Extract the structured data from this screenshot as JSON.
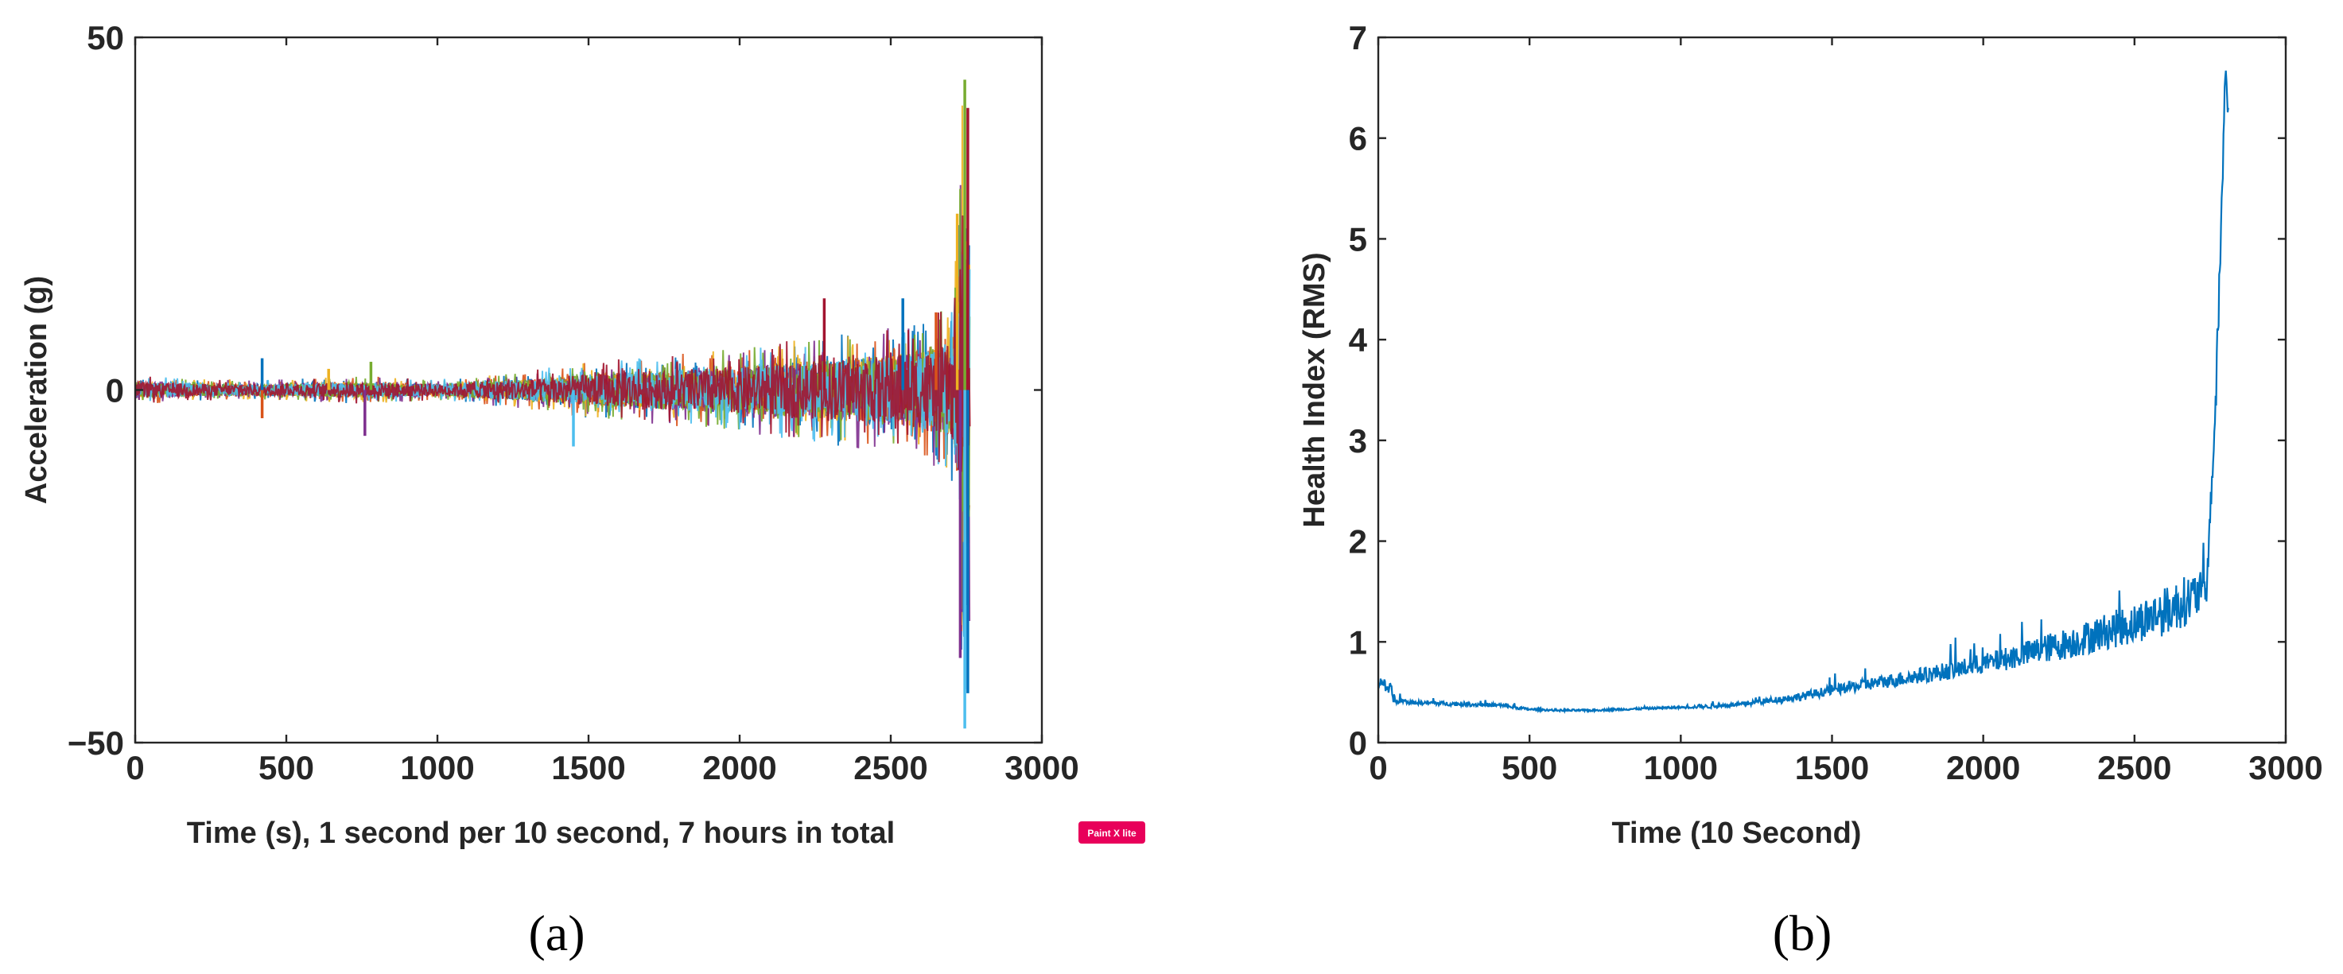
{
  "chart_data": [
    {
      "type": "line",
      "panel": "(a)",
      "title": "",
      "xlabel": "Time (s), 1 second per 10 second, 7 hours in total",
      "ylabel": "Acceleration (g)",
      "xlim": [
        0,
        3000
      ],
      "ylim": [
        -50,
        50
      ],
      "xticks": [
        0,
        500,
        1000,
        1500,
        2000,
        2500,
        3000
      ],
      "yticks": [
        -50,
        0,
        50
      ],
      "ytick_labels": [
        "−50",
        "0",
        "50"
      ],
      "grid": false,
      "legend": "none",
      "series_colors": [
        "#0072BD",
        "#D95319",
        "#EDB120",
        "#7E2F8E",
        "#77AC30",
        "#4DBEEE",
        "#A2142F"
      ],
      "envelope": {
        "description_of_values": "approximate peak amplitude (g) of the overlaid vibration traces",
        "x": [
          0,
          250,
          500,
          750,
          1000,
          1250,
          1500,
          1750,
          2000,
          2250,
          2500,
          2600,
          2650,
          2700,
          2720,
          2740,
          2760
        ],
        "amplitude": [
          2,
          1.5,
          1.5,
          2,
          1.5,
          2.5,
          4,
          5,
          6,
          7.5,
          9,
          10,
          11,
          12,
          22,
          45,
          40
        ]
      },
      "spikes": [
        {
          "x": 420,
          "y": 4.5
        },
        {
          "x": 420,
          "y": -4
        },
        {
          "x": 640,
          "y": 3
        },
        {
          "x": 760,
          "y": -6.5
        },
        {
          "x": 780,
          "y": 4
        },
        {
          "x": 1450,
          "y": -8
        },
        {
          "x": 2280,
          "y": 13
        },
        {
          "x": 2540,
          "y": 13
        },
        {
          "x": 2650,
          "y": 11
        },
        {
          "x": 2720,
          "y": 25
        },
        {
          "x": 2730,
          "y": -38
        },
        {
          "x": 2745,
          "y": 44
        },
        {
          "x": 2745,
          "y": -48
        },
        {
          "x": 2755,
          "y": 40
        },
        {
          "x": 2755,
          "y": -43
        }
      ]
    },
    {
      "type": "line",
      "panel": "(b)",
      "title": "",
      "xlabel": "Time (10 Second)",
      "ylabel": "Health Index (RMS)",
      "xlim": [
        0,
        3000
      ],
      "ylim": [
        0,
        7
      ],
      "xticks": [
        0,
        500,
        1000,
        1500,
        2000,
        2500,
        3000
      ],
      "yticks": [
        0,
        1,
        2,
        3,
        4,
        5,
        6,
        7
      ],
      "grid": false,
      "legend": "none",
      "color": "#0072BD",
      "x": [
        0,
        10,
        20,
        30,
        40,
        50,
        60,
        80,
        100,
        200,
        300,
        400,
        500,
        600,
        700,
        800,
        900,
        1000,
        1100,
        1200,
        1300,
        1400,
        1500,
        1600,
        1700,
        1800,
        1900,
        2000,
        2100,
        2200,
        2300,
        2400,
        2500,
        2550,
        2600,
        2650,
        2700,
        2740,
        2750,
        2760,
        2770,
        2780,
        2790,
        2800,
        2810
      ],
      "y": [
        0.55,
        0.62,
        0.58,
        0.5,
        0.55,
        0.45,
        0.4,
        0.42,
        0.4,
        0.39,
        0.38,
        0.37,
        0.33,
        0.32,
        0.32,
        0.33,
        0.34,
        0.35,
        0.36,
        0.38,
        0.42,
        0.46,
        0.52,
        0.57,
        0.62,
        0.67,
        0.72,
        0.78,
        0.85,
        0.93,
        1.0,
        1.1,
        1.18,
        1.25,
        1.3,
        1.38,
        1.45,
        1.55,
        2.3,
        2.8,
        3.5,
        4.5,
        5.5,
        6.7,
        6.2
      ],
      "noise_amplitude": [
        0.03,
        0.05,
        0.05,
        0.05,
        0.05,
        0.05,
        0.03,
        0.02,
        0.02,
        0.02,
        0.02,
        0.02,
        0.01,
        0.01,
        0.01,
        0.01,
        0.01,
        0.01,
        0.02,
        0.02,
        0.03,
        0.04,
        0.05,
        0.06,
        0.07,
        0.08,
        0.09,
        0.1,
        0.12,
        0.14,
        0.16,
        0.18,
        0.2,
        0.22,
        0.24,
        0.25,
        0.25,
        0.15,
        0.15,
        0.2,
        0.2,
        0.25,
        0.25,
        0.15,
        0.15
      ]
    }
  ],
  "panels": {
    "a_label": "(a)",
    "b_label": "(b)"
  },
  "watermark": {
    "text": "Paint X lite",
    "color": "#E8005A"
  }
}
